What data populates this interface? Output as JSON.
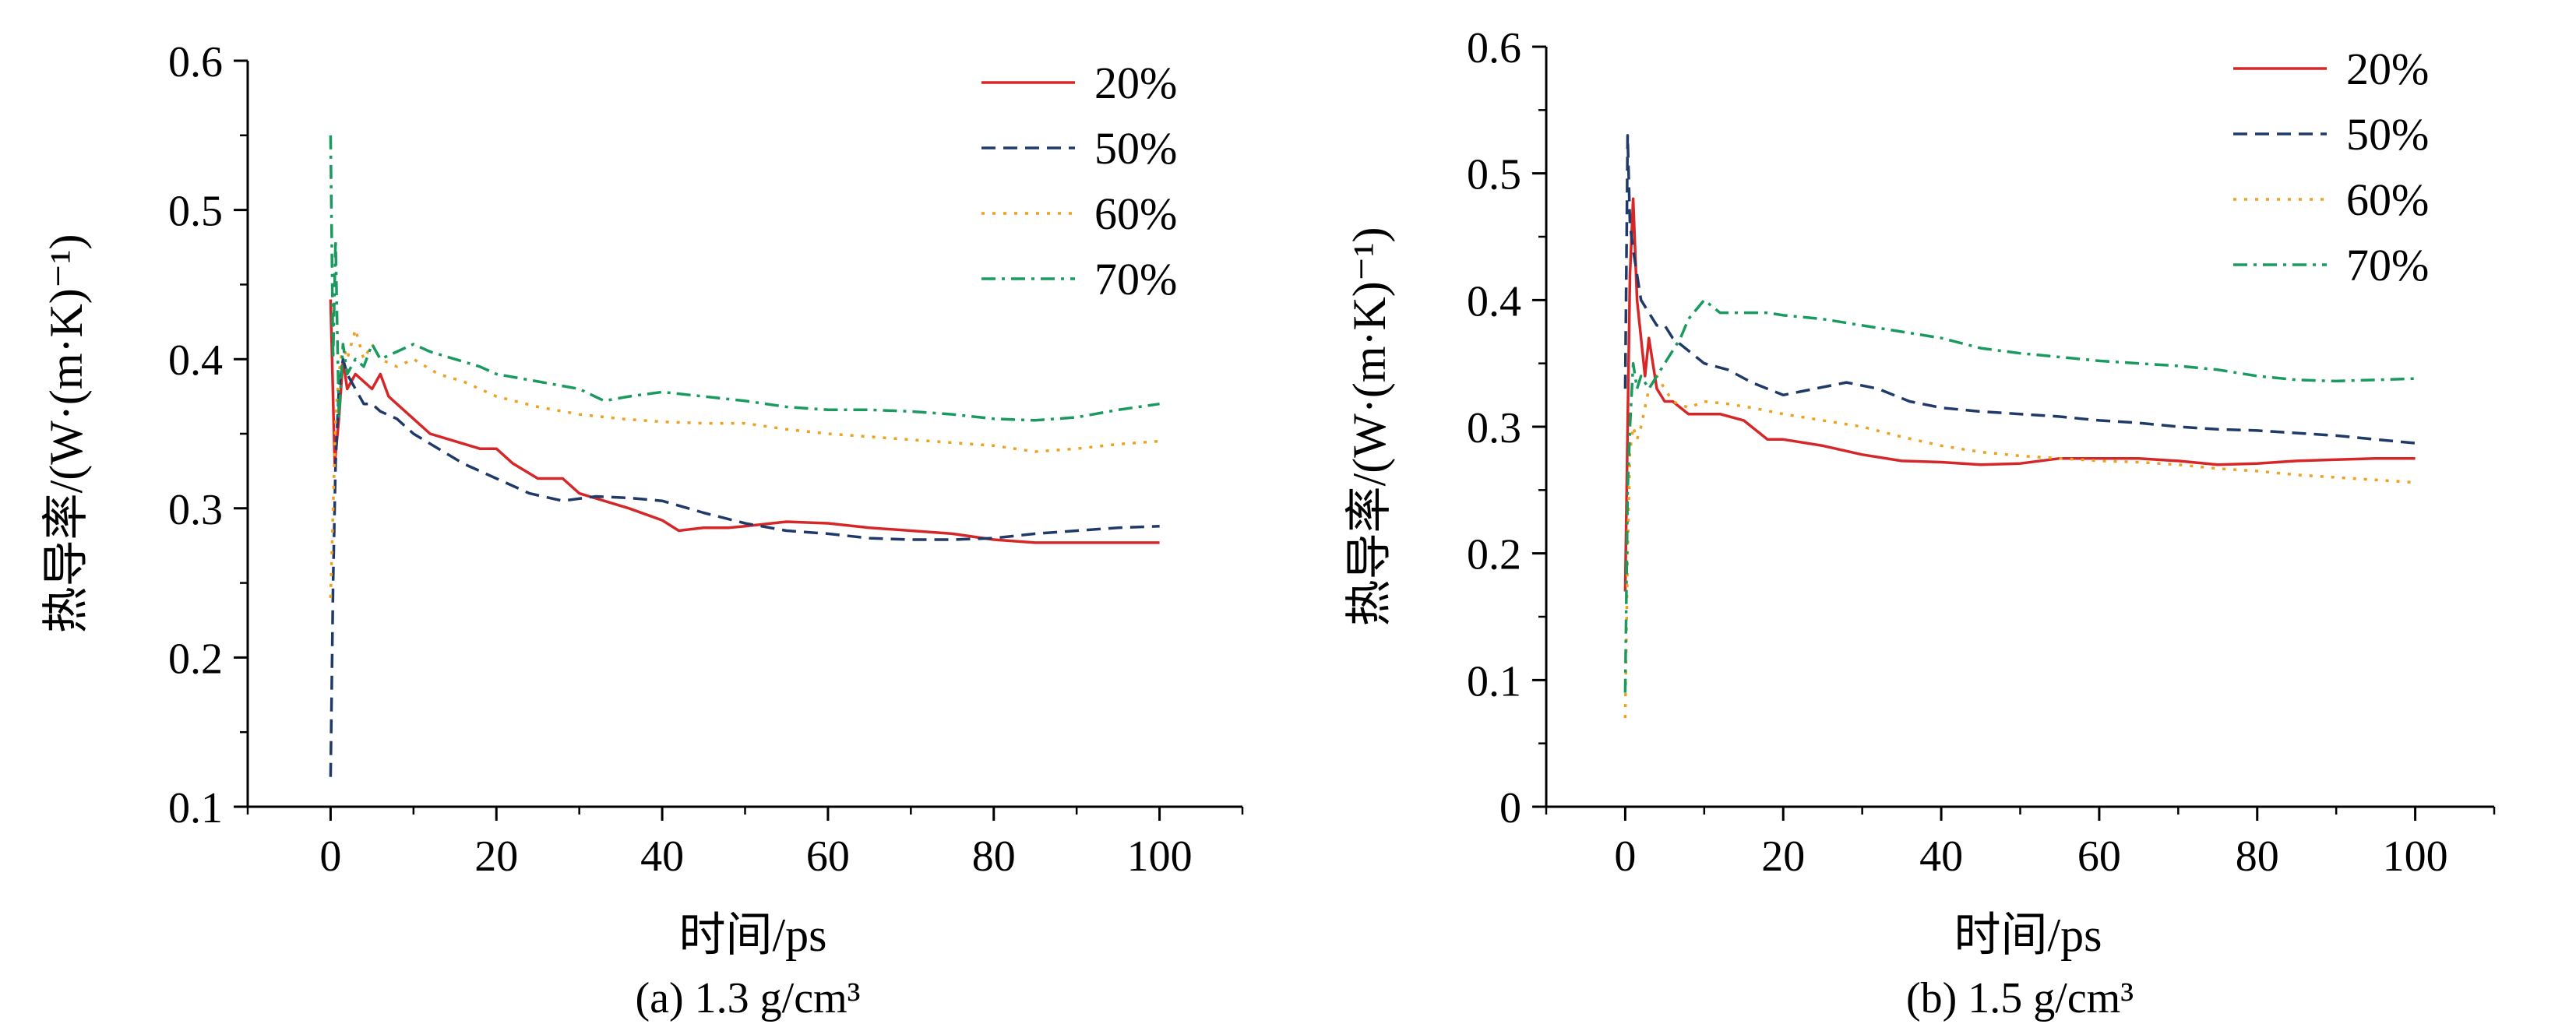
{
  "chart_data": [
    {
      "type": "line",
      "caption": "(a) 1.3 g/cm³",
      "xlabel": "时间/ps",
      "ylabel": "热导率/(W·(m·K)⁻¹)",
      "xlim": [
        -10,
        110
      ],
      "ylim": [
        0.1,
        0.6
      ],
      "xticks": [
        0,
        20,
        40,
        60,
        80,
        100
      ],
      "yticks": [
        0.1,
        0.2,
        0.3,
        0.4,
        0.5,
        0.6
      ],
      "ytick_labels": [
        "0.1",
        "0.2",
        "0.3",
        "0.4",
        "0.5",
        "0.6"
      ],
      "grid": false,
      "legend_position": "top-right",
      "series": [
        {
          "name": "20%",
          "color": "#d62728",
          "dash": "solid",
          "x": [
            0,
            0.5,
            1,
            1.5,
            2,
            3,
            4,
            5,
            6,
            7,
            8,
            10,
            12,
            15,
            18,
            20,
            22,
            25,
            28,
            30,
            33,
            36,
            40,
            42,
            45,
            48,
            50,
            55,
            60,
            65,
            70,
            75,
            80,
            85,
            90,
            95,
            100
          ],
          "y": [
            0.44,
            0.33,
            0.36,
            0.4,
            0.38,
            0.39,
            0.385,
            0.38,
            0.39,
            0.375,
            0.37,
            0.36,
            0.35,
            0.345,
            0.34,
            0.34,
            0.33,
            0.32,
            0.32,
            0.31,
            0.305,
            0.3,
            0.292,
            0.285,
            0.287,
            0.287,
            0.288,
            0.291,
            0.29,
            0.287,
            0.285,
            0.283,
            0.279,
            0.277,
            0.277,
            0.277,
            0.277
          ]
        },
        {
          "name": "50%",
          "color": "#1f3a68",
          "dash": "dashed",
          "x": [
            0,
            0.3,
            0.6,
            1,
            1.5,
            2,
            3,
            4,
            5,
            6,
            8,
            10,
            13,
            16,
            20,
            24,
            28,
            32,
            36,
            40,
            45,
            50,
            55,
            60,
            65,
            70,
            75,
            80,
            85,
            90,
            95,
            100
          ],
          "y": [
            0.12,
            0.25,
            0.33,
            0.38,
            0.4,
            0.39,
            0.38,
            0.37,
            0.37,
            0.365,
            0.36,
            0.35,
            0.34,
            0.33,
            0.32,
            0.31,
            0.305,
            0.308,
            0.307,
            0.305,
            0.297,
            0.29,
            0.285,
            0.283,
            0.28,
            0.279,
            0.279,
            0.28,
            0.283,
            0.285,
            0.287,
            0.288
          ]
        },
        {
          "name": "60%",
          "color": "#f0a020",
          "dash": "dotted",
          "x": [
            0,
            0.3,
            0.6,
            1,
            1.5,
            2,
            3,
            4,
            5,
            6,
            8,
            10,
            13,
            16,
            20,
            25,
            30,
            35,
            40,
            45,
            50,
            55,
            60,
            65,
            70,
            75,
            80,
            85,
            90,
            95,
            100
          ],
          "y": [
            0.24,
            0.3,
            0.36,
            0.39,
            0.41,
            0.4,
            0.42,
            0.4,
            0.41,
            0.4,
            0.395,
            0.4,
            0.39,
            0.385,
            0.375,
            0.368,
            0.363,
            0.36,
            0.358,
            0.357,
            0.357,
            0.353,
            0.35,
            0.348,
            0.346,
            0.344,
            0.342,
            0.338,
            0.34,
            0.343,
            0.345
          ]
        },
        {
          "name": "70%",
          "color": "#1a9a5e",
          "dash": "dashdot",
          "x": [
            0,
            0.3,
            0.6,
            1,
            1.5,
            2,
            3,
            4,
            5,
            6,
            8,
            10,
            12,
            15,
            18,
            20,
            25,
            30,
            33,
            36,
            40,
            45,
            50,
            55,
            60,
            65,
            70,
            75,
            80,
            85,
            90,
            95,
            100
          ],
          "y": [
            0.55,
            0.4,
            0.48,
            0.36,
            0.41,
            0.39,
            0.4,
            0.395,
            0.41,
            0.4,
            0.405,
            0.41,
            0.405,
            0.4,
            0.395,
            0.39,
            0.385,
            0.38,
            0.372,
            0.375,
            0.378,
            0.375,
            0.372,
            0.368,
            0.366,
            0.366,
            0.365,
            0.363,
            0.36,
            0.359,
            0.361,
            0.366,
            0.37
          ]
        }
      ]
    },
    {
      "type": "line",
      "caption": "(b) 1.5 g/cm³",
      "xlabel": "时间/ps",
      "ylabel": "热导率/(W·(m·K)⁻¹)",
      "xlim": [
        -10,
        110
      ],
      "ylim": [
        0,
        0.6
      ],
      "xticks": [
        0,
        20,
        40,
        60,
        80,
        100
      ],
      "yticks": [
        0,
        0.1,
        0.2,
        0.3,
        0.4,
        0.5,
        0.6
      ],
      "ytick_labels": [
        "0",
        "0.1",
        "0.2",
        "0.3",
        "0.4",
        "0.5",
        "0.6"
      ],
      "grid": false,
      "legend_position": "top-right",
      "series": [
        {
          "name": "20%",
          "color": "#d62728",
          "dash": "solid",
          "x": [
            0,
            0.3,
            0.6,
            1,
            1.5,
            2,
            2.5,
            3,
            4,
            5,
            6,
            8,
            10,
            12,
            15,
            18,
            20,
            25,
            30,
            35,
            40,
            45,
            50,
            55,
            60,
            65,
            70,
            75,
            80,
            85,
            90,
            95,
            100
          ],
          "y": [
            0.17,
            0.3,
            0.42,
            0.48,
            0.4,
            0.37,
            0.34,
            0.37,
            0.33,
            0.32,
            0.32,
            0.31,
            0.31,
            0.31,
            0.305,
            0.29,
            0.29,
            0.285,
            0.278,
            0.273,
            0.272,
            0.27,
            0.271,
            0.275,
            0.275,
            0.275,
            0.273,
            0.27,
            0.271,
            0.273,
            0.274,
            0.275,
            0.275
          ]
        },
        {
          "name": "50%",
          "color": "#1f3a68",
          "dash": "dashed",
          "x": [
            0,
            0.3,
            0.6,
            1,
            1.5,
            2,
            3,
            4,
            5,
            6,
            8,
            10,
            13,
            16,
            20,
            24,
            28,
            32,
            36,
            40,
            45,
            50,
            55,
            60,
            65,
            70,
            75,
            80,
            85,
            90,
            95,
            100
          ],
          "y": [
            0.33,
            0.53,
            0.46,
            0.44,
            0.42,
            0.4,
            0.39,
            0.38,
            0.38,
            0.37,
            0.36,
            0.35,
            0.345,
            0.335,
            0.325,
            0.33,
            0.335,
            0.33,
            0.32,
            0.315,
            0.312,
            0.31,
            0.308,
            0.305,
            0.303,
            0.3,
            0.298,
            0.297,
            0.295,
            0.293,
            0.29,
            0.287
          ]
        },
        {
          "name": "60%",
          "color": "#f0a020",
          "dash": "dotted",
          "x": [
            0,
            0.3,
            0.6,
            1,
            1.5,
            2,
            3,
            4,
            5,
            6,
            8,
            10,
            13,
            16,
            20,
            25,
            30,
            35,
            40,
            45,
            50,
            55,
            60,
            65,
            70,
            75,
            80,
            85,
            90,
            95,
            100
          ],
          "y": [
            0.07,
            0.2,
            0.28,
            0.3,
            0.29,
            0.3,
            0.33,
            0.34,
            0.33,
            0.32,
            0.315,
            0.32,
            0.318,
            0.315,
            0.31,
            0.305,
            0.3,
            0.292,
            0.285,
            0.28,
            0.277,
            0.275,
            0.273,
            0.272,
            0.27,
            0.267,
            0.265,
            0.262,
            0.26,
            0.258,
            0.256
          ]
        },
        {
          "name": "70%",
          "color": "#1a9a5e",
          "dash": "dashdot",
          "x": [
            0,
            0.3,
            0.6,
            1,
            1.5,
            2,
            3,
            4,
            5,
            6,
            7,
            8,
            10,
            12,
            15,
            18,
            20,
            25,
            30,
            35,
            40,
            45,
            50,
            55,
            60,
            65,
            70,
            75,
            80,
            85,
            90,
            95,
            100
          ],
          "y": [
            0.09,
            0.25,
            0.3,
            0.35,
            0.33,
            0.34,
            0.33,
            0.34,
            0.35,
            0.36,
            0.37,
            0.385,
            0.4,
            0.39,
            0.39,
            0.39,
            0.388,
            0.385,
            0.38,
            0.375,
            0.37,
            0.362,
            0.358,
            0.355,
            0.352,
            0.35,
            0.348,
            0.345,
            0.34,
            0.337,
            0.336,
            0.337,
            0.338
          ]
        }
      ]
    }
  ]
}
